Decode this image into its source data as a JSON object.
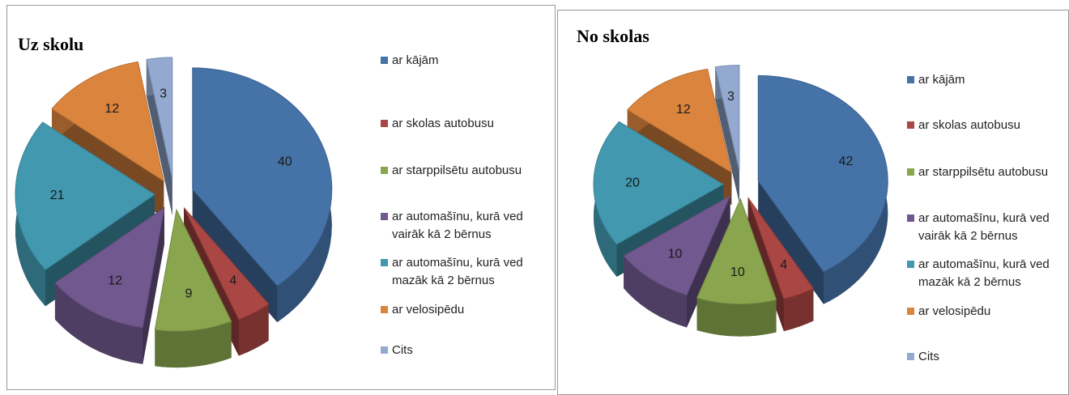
{
  "chart_data": [
    {
      "type": "pie",
      "title": "Uz skolu",
      "categories": [
        "ar kājām",
        "ar skolas autobusu",
        "ar starppilsētu autobusu",
        "ar automašīnu, kurā ved vairāk kā 2 bērnus",
        "ar automašīnu, kurā ved mazāk kā 2 bērnus",
        "ar velosipēdu",
        "Cits"
      ],
      "values": [
        40,
        4,
        9,
        12,
        21,
        12,
        3
      ],
      "colors": [
        "#4572a7",
        "#aa4643",
        "#89a54e",
        "#71588f",
        "#4198af",
        "#db843d",
        "#93a9cf"
      ],
      "legend": "right"
    },
    {
      "type": "pie",
      "title": "No skolas",
      "categories": [
        "ar kājām",
        "ar skolas autobusu",
        "ar starppilsētu autobusu",
        "ar automašīnu, kurā ved vairāk kā 2 bērnus",
        "ar automašīnu, kurā ved mazāk kā 2 bērnus",
        "ar velosipēdu",
        "Cits"
      ],
      "values": [
        42,
        4,
        10,
        10,
        20,
        12,
        3
      ],
      "colors": [
        "#4572a7",
        "#aa4643",
        "#89a54e",
        "#71588f",
        "#4198af",
        "#db843d",
        "#93a9cf"
      ],
      "legend": "right"
    }
  ]
}
